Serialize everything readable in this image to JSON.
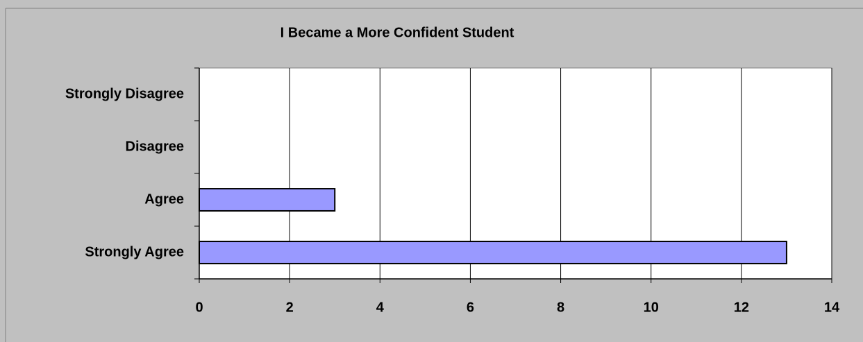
{
  "chart_data": {
    "type": "bar",
    "orientation": "horizontal",
    "title": "I Became a More Confident Student",
    "categories": [
      "Strongly Disagree",
      "Disagree",
      "Agree",
      "Strongly Agree"
    ],
    "values": [
      0,
      0,
      3,
      13
    ],
    "color": "#9999ff",
    "xlim": [
      0,
      14
    ],
    "xticks": [
      0,
      2,
      4,
      6,
      8,
      10,
      12,
      14
    ],
    "grid": true
  }
}
